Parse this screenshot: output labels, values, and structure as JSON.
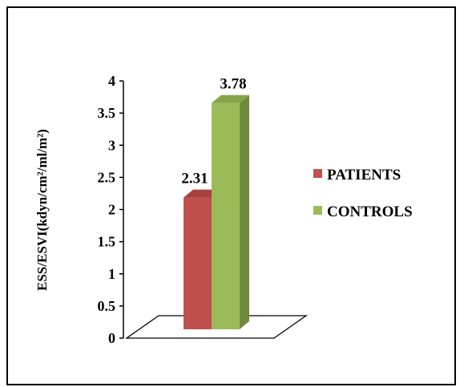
{
  "chart_data": {
    "type": "bar",
    "style": "3d-column",
    "categories": [
      ""
    ],
    "series": [
      {
        "name": "PATIENTS",
        "values": [
          2.31
        ],
        "color": "#c0504d",
        "side_color": "#8c3836",
        "top_color": "#a8423f"
      },
      {
        "name": "CONTROLS",
        "values": [
          3.78
        ],
        "color": "#9bbb59",
        "side_color": "#6f8a3c",
        "top_color": "#86a34a"
      }
    ],
    "data_labels": [
      "2.31",
      "3.78"
    ],
    "ylabel": "ESS/ESVI(kdyn/cm²/ml/m²)",
    "ylim": [
      0,
      4
    ],
    "yticks": [
      "0",
      "0.5",
      "1",
      "1.5",
      "2",
      "2.5",
      "3",
      "3.5",
      "4"
    ],
    "grid": false,
    "legend": "right"
  }
}
